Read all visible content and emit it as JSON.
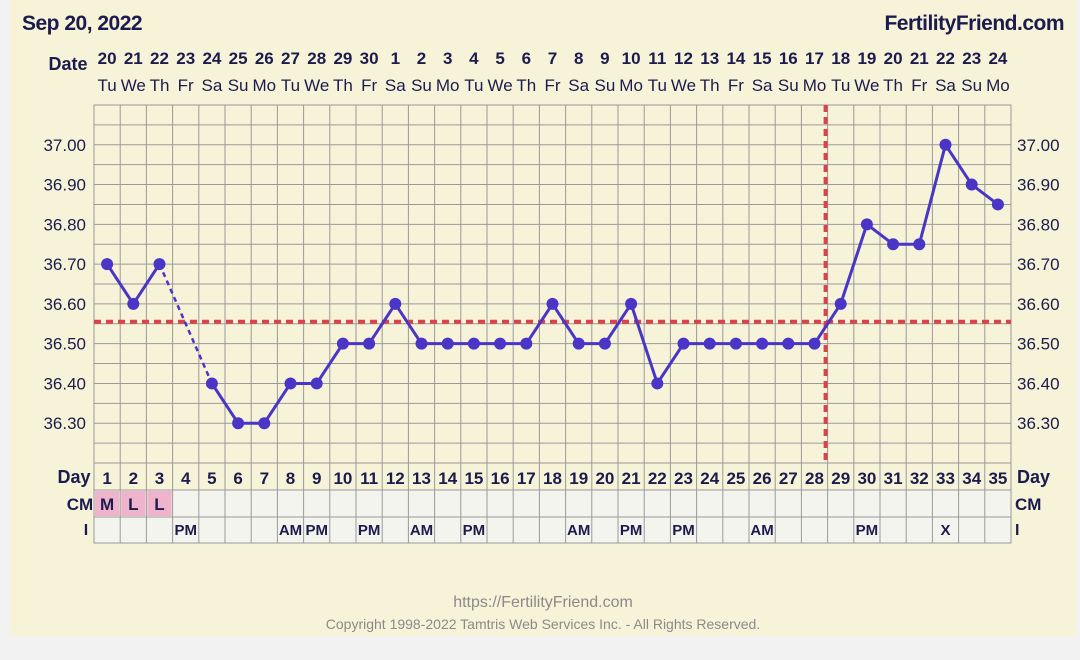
{
  "header": {
    "chart_date": "Sep 20, 2022",
    "brand": "FertilityFriend.com"
  },
  "footer": {
    "url": "https://FertilityFriend.com",
    "copyright": "Copyright 1998-2022 Tamtris Web Services Inc. - All Rights Reserved."
  },
  "colors": {
    "background": "#f7f3d9",
    "line": "#4a35c6",
    "coverline": "#d9434a",
    "text": "#1c1b4d",
    "grid": "#9a9a9a",
    "cm_fill": "#efb3cb"
  },
  "chart_data": {
    "type": "line",
    "row_labels": {
      "date": "Date",
      "day": "Day",
      "cm": "CM",
      "intercourse": "I"
    },
    "cycle_days": [
      1,
      2,
      3,
      4,
      5,
      6,
      7,
      8,
      9,
      10,
      11,
      12,
      13,
      14,
      15,
      16,
      17,
      18,
      19,
      20,
      21,
      22,
      23,
      24,
      25,
      26,
      27,
      28,
      29,
      30,
      31,
      32,
      33,
      34,
      35
    ],
    "dates": [
      "20",
      "21",
      "22",
      "23",
      "24",
      "25",
      "26",
      "27",
      "28",
      "29",
      "30",
      "1",
      "2",
      "3",
      "4",
      "5",
      "6",
      "7",
      "8",
      "9",
      "10",
      "11",
      "12",
      "13",
      "14",
      "15",
      "16",
      "17",
      "18",
      "19",
      "20",
      "21",
      "22",
      "23",
      "24"
    ],
    "weekdays": [
      "Tu",
      "We",
      "Th",
      "Fr",
      "Sa",
      "Su",
      "Mo",
      "Tu",
      "We",
      "Th",
      "Fr",
      "Sa",
      "Su",
      "Mo",
      "Tu",
      "We",
      "Th",
      "Fr",
      "Sa",
      "Su",
      "Mo",
      "Tu",
      "We",
      "Th",
      "Fr",
      "Sa",
      "Su",
      "Mo",
      "Tu",
      "We",
      "Th",
      "Fr",
      "Sa",
      "Su",
      "Mo"
    ],
    "temperatures": [
      36.7,
      36.6,
      36.7,
      null,
      36.4,
      36.3,
      36.3,
      36.4,
      36.4,
      36.5,
      36.5,
      36.6,
      36.5,
      36.5,
      36.5,
      36.5,
      36.5,
      36.6,
      36.5,
      36.5,
      36.6,
      36.4,
      36.5,
      36.5,
      36.5,
      36.5,
      36.5,
      36.5,
      36.6,
      36.8,
      36.75,
      36.75,
      37.0,
      36.9,
      36.85
    ],
    "y_ticks": [
      "37.00",
      "36.90",
      "36.80",
      "36.70",
      "36.60",
      "36.50",
      "36.40",
      "36.30"
    ],
    "y_range": [
      36.2,
      37.1
    ],
    "coverline": 36.555,
    "ovulation_day": 28,
    "cervical_mucus": {
      "1": "M",
      "2": "L",
      "3": "L"
    },
    "intercourse": {
      "4": "PM",
      "8": "AM",
      "9": "PM",
      "11": "PM",
      "13": "AM",
      "15": "PM",
      "19": "AM",
      "21": "PM",
      "23": "PM",
      "26": "AM",
      "30": "PM",
      "33": "X"
    },
    "grid": true
  }
}
